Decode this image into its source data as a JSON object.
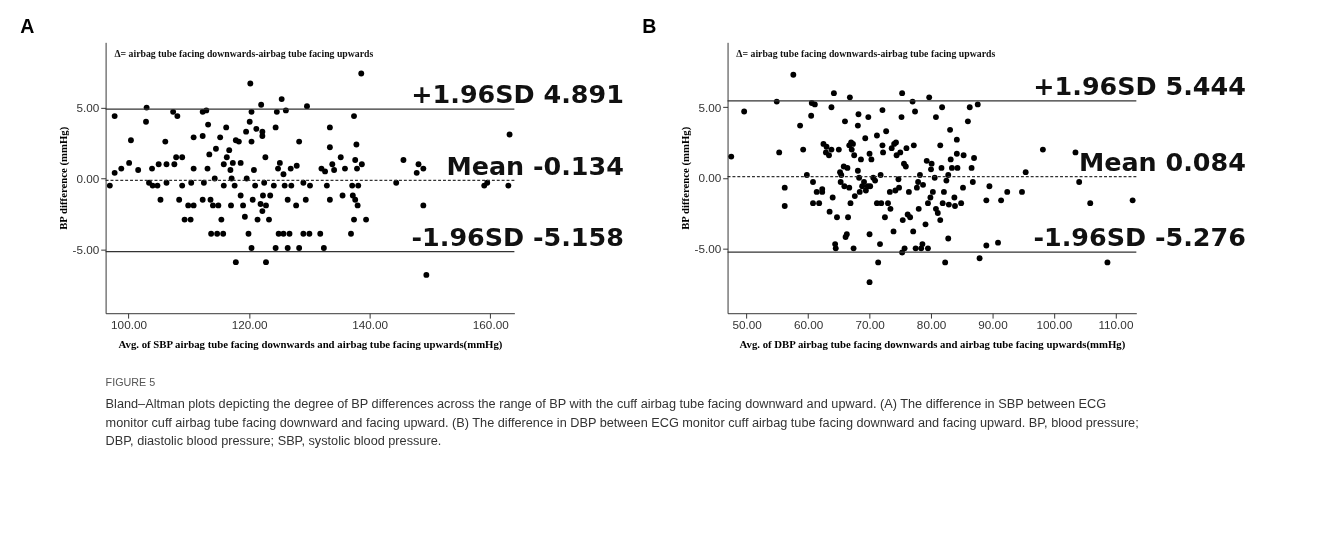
{
  "chart_data": [
    {
      "type": "scatter",
      "title": "A",
      "xlabel": "Avg. of SBP airbag tube facing downwards and airbag tube facing upwards(mmHg)",
      "ylabel": "BP difference (mmHg)",
      "annotations": [
        "Δ= airbag tube facing downwards-airbag tube facing upwards"
      ],
      "xlim": [
        96.2,
        164.0
      ],
      "ylim": [
        -9.5,
        9.6
      ],
      "xticks": [
        {
          "value": 100,
          "label": "100.00"
        },
        {
          "value": 120,
          "label": "120.00"
        },
        {
          "value": 140,
          "label": "140.00"
        },
        {
          "value": 160,
          "label": "160.00"
        }
      ],
      "yticks": [
        {
          "value": -5,
          "label": "-5.00"
        },
        {
          "value": 0,
          "label": "0.00"
        },
        {
          "value": 5,
          "label": "5.00"
        }
      ],
      "grid": false,
      "marker": "circle",
      "ref_lines": [
        {
          "axis": "y",
          "value": 4.891,
          "label": "+1.96SD 4.891",
          "color": "#333333",
          "line_style": "solid"
        },
        {
          "axis": "y",
          "value": -0.134,
          "label": "Mean -0.134",
          "color": "#333333",
          "line_style": "dashed"
        },
        {
          "axis": "y",
          "value": -5.158,
          "label": "-1.96SD -5.158",
          "color": "#333333",
          "line_style": "solid"
        }
      ],
      "series": [
        {
          "color": "#000000",
          "x": [
            96.9,
            97.7,
            97.7,
            98.8,
            100.1,
            100.4,
            101.6,
            102.9,
            103.0,
            103.4,
            103.9,
            104.0,
            104.8,
            105.0,
            105.3,
            106.1,
            106.3,
            106.3,
            107.4,
            107.6,
            107.9,
            108.1,
            108.4,
            108.9,
            108.9,
            109.3,
            109.9,
            110.3,
            110.4,
            110.8,
            110.8,
            110.8,
            112.3,
            112.3,
            112.3,
            112.5,
            112.9,
            113.1,
            113.2,
            113.4,
            113.6,
            113.7,
            114.0,
            114.3,
            114.5,
            114.7,
            114.9,
            115.2,
            115.4,
            115.7,
            115.8,
            115.8,
            116.2,
            116.3,
            116.7,
            116.9,
            117.0,
            117.1,
            117.3,
            117.6,
            117.8,
            117.8,
            118.3,
            118.6,
            118.6,
            119.0,
            119.3,
            119.5,
            119.6,
            119.9,
            120.1,
            120.2,
            120.4,
            120.4,
            120.4,
            120.6,
            120.8,
            121.0,
            121.2,
            121.4,
            121.9,
            122.0,
            122.2,
            122.2,
            122.2,
            122.3,
            122.5,
            122.7,
            122.8,
            122.8,
            123.3,
            123.5,
            124.1,
            124.4,
            124.4,
            124.6,
            124.8,
            124.9,
            125.1,
            125.4,
            125.7,
            125.7,
            125.9,
            126.1,
            126.4,
            126.4,
            126.7,
            126.9,
            127.0,
            127.8,
            127.9,
            128.3,
            128.3,
            129.0,
            129.0,
            129.4,
            129.6,
            130.0,
            130.1,
            131.8,
            132.0,
            132.4,
            132.6,
            132.9,
            133.4,
            133.4,
            133.4,
            133.8,
            134.1,
            135.2,
            135.5,
            135.9,
            136.9,
            137.1,
            137.2,
            137.4,
            137.4,
            137.6,
            137.6,
            137.8,
            137.9,
            138.0,
            138.1,
            138.6,
            138.7,
            139.4,
            144.4,
            145.6,
            147.8,
            148.1,
            148.9,
            148.9,
            149.4,
            159.0,
            159.5,
            163.0,
            163.2
          ],
          "values": [
            -0.5,
            4.4,
            0.4,
            0.7,
            1.1,
            2.7,
            0.6,
            4.0,
            5.0,
            -0.3,
            0.7,
            -0.5,
            -0.5,
            1.0,
            -1.5,
            2.6,
            -0.3,
            1.0,
            4.7,
            1.0,
            1.5,
            4.4,
            -1.5,
            1.5,
            -0.5,
            -2.9,
            -1.9,
            -2.9,
            -0.3,
            2.9,
            -1.9,
            0.7,
            3.0,
            4.7,
            -1.5,
            -0.3,
            4.8,
            0.7,
            3.8,
            1.7,
            -1.5,
            -3.9,
            -1.9,
            0.0,
            2.1,
            -3.9,
            -1.9,
            2.9,
            -2.9,
            -3.9,
            1.0,
            -0.5,
            3.6,
            1.5,
            2.0,
            0.6,
            -1.9,
            0.0,
            1.1,
            -0.5,
            -5.9,
            2.7,
            2.6,
            1.1,
            -1.2,
            -1.9,
            -2.7,
            3.3,
            0.0,
            -3.9,
            4.0,
            6.7,
            4.7,
            2.6,
            -4.9,
            -1.5,
            0.6,
            -0.5,
            3.5,
            -2.9,
            -1.8,
            5.2,
            3.0,
            3.3,
            -2.3,
            -1.2,
            -0.3,
            1.5,
            -5.9,
            -1.9,
            -2.9,
            -1.2,
            -0.5,
            -4.9,
            3.6,
            4.7,
            0.7,
            -3.9,
            1.1,
            5.6,
            0.3,
            -3.9,
            -0.5,
            4.8,
            -1.5,
            -4.9,
            -3.9,
            0.7,
            -0.5,
            -1.9,
            0.9,
            2.6,
            -4.9,
            -0.3,
            -3.9,
            -1.5,
            5.1,
            -3.9,
            -0.5,
            -3.9,
            0.7,
            -4.9,
            0.5,
            -0.5,
            -1.5,
            2.2,
            3.6,
            1.0,
            0.6,
            1.5,
            -1.2,
            0.7,
            -3.9,
            -0.5,
            -1.2,
            4.4,
            -2.9,
            1.3,
            -1.5,
            2.4,
            0.7,
            -1.9,
            -0.5,
            7.4,
            1.0,
            -2.9,
            -0.3,
            1.3,
            0.4,
            1.0,
            0.7,
            -1.9,
            -6.8,
            -0.5,
            -0.3,
            -0.5,
            3.1
          ]
        }
      ]
    },
    {
      "type": "scatter",
      "title": "B",
      "xlabel": "Avg. of DBP airbag tube facing downwards and airbag tube facing upwards(mmHg)",
      "ylabel": "BP difference (mmHg)",
      "annotations": [
        "Δ= airbag tube facing downwards-airbag tube facing upwards",
        "FIGURE 5",
        "Bland–Altman plots depicting the degree of BP differences across the range of BP with the cuff airbag tube facing downward and upward. (A) The difference in SBP between ECG monitor cuff airbag tube facing downward and facing upward. (B) The difference in DBP between ECG monitor cuff airbag tube facing downward and facing upward. BP, blood pressure; DBP, diastolic blood pressure; SBP, systolic blood pressure."
      ],
      "xlim": [
        46.9,
        113.4
      ],
      "ylim": [
        -9.6,
        9.6
      ],
      "xticks": [
        {
          "value": 50,
          "label": "50.00"
        },
        {
          "value": 60,
          "label": "60.00"
        },
        {
          "value": 70,
          "label": "70.00"
        },
        {
          "value": 80,
          "label": "80.00"
        },
        {
          "value": 90,
          "label": "90.00"
        },
        {
          "value": 100,
          "label": "100.00"
        },
        {
          "value": 110,
          "label": "110.00"
        }
      ],
      "yticks": [
        {
          "value": -5,
          "label": "-5.00"
        },
        {
          "value": 0,
          "label": "0.00"
        },
        {
          "value": 5,
          "label": "5.00"
        }
      ],
      "grid": false,
      "marker": "circle",
      "ref_lines": [
        {
          "axis": "y",
          "value": 5.444,
          "label": "+1.96SD 5.444",
          "color": "#333333",
          "line_style": "solid"
        },
        {
          "axis": "y",
          "value": 0.084,
          "label": "Mean 0.084",
          "color": "#333333",
          "line_style": "dashed"
        },
        {
          "axis": "y",
          "value": -5.276,
          "label": "-1.96SD -5.276",
          "color": "#333333",
          "line_style": "solid"
        }
      ],
      "series": [
        {
          "color": "#000000",
          "x": [
            47.5,
            49.6,
            54.9,
            55.3,
            56.2,
            56.2,
            57.6,
            58.7,
            59.2,
            59.8,
            60.5,
            60.6,
            60.8,
            60.8,
            61.1,
            61.4,
            61.8,
            62.3,
            62.3,
            62.5,
            62.9,
            63.0,
            63.4,
            63.5,
            63.8,
            63.8,
            64.0,
            64.2,
            64.4,
            64.5,
            64.7,
            65.0,
            65.2,
            65.3,
            65.4,
            65.8,
            65.9,
            66.0,
            66.1,
            66.3,
            66.4,
            66.5,
            66.7,
            66.7,
            66.8,
            66.9,
            67.0,
            67.1,
            67.3,
            67.4,
            67.5,
            67.6,
            68.1,
            68.1,
            68.2,
            68.3,
            68.4,
            68.6,
            68.8,
            69.1,
            69.3,
            69.4,
            69.7,
            70.0,
            70.0,
            69.8,
            70.0,
            70.1,
            70.3,
            70.6,
            70.9,
            71.2,
            71.2,
            71.4,
            71.7,
            71.8,
            71.9,
            72.1,
            72.1,
            72.2,
            72.5,
            72.7,
            73.0,
            73.3,
            73.4,
            73.6,
            73.9,
            74.0,
            74.2,
            74.3,
            74.4,
            74.7,
            74.8,
            75.0,
            75.2,
            75.3,
            75.3,
            75.4,
            75.6,
            75.7,
            75.9,
            76.0,
            76.2,
            76.4,
            76.6,
            77.0,
            77.1,
            77.2,
            77.4,
            77.5,
            77.7,
            77.9,
            78.0,
            78.2,
            78.4,
            78.6,
            78.7,
            79.1,
            79.3,
            79.5,
            79.5,
            79.7,
            79.9,
            80.0,
            80.1,
            80.3,
            80.6,
            80.8,
            80.8,
            81.1,
            81.5,
            81.5,
            81.7,
            81.8,
            81.9,
            82.1,
            82.3,
            82.5,
            82.8,
            82.8,
            82.9,
            83.1,
            83.2,
            83.4,
            83.8,
            83.9,
            84.2,
            84.2,
            84.3,
            84.9,
            85.2,
            85.3,
            86.0,
            86.3,
            86.6,
            86.8,
            87.0,
            87.6,
            87.9,
            89.0,
            89.0,
            89.5,
            90.9,
            91.4,
            92.4,
            94.8,
            95.4,
            98.2,
            103.5,
            104.1,
            105.9,
            108.7,
            112.8
          ],
          "values": [
            1.5,
            4.7,
            5.4,
            1.8,
            -0.7,
            -2.0,
            7.3,
            3.7,
            2.0,
            0.2,
            4.4,
            5.3,
            -0.3,
            -1.8,
            5.2,
            -1.0,
            -1.8,
            -0.8,
            -1.0,
            2.4,
            1.8,
            2.2,
            1.6,
            -2.4,
            5.0,
            2.0,
            -1.4,
            6.0,
            -4.7,
            -5.0,
            -2.8,
            2.0,
            0.4,
            -0.3,
            0.2,
            0.8,
            -0.6,
            4.0,
            -4.2,
            -4.0,
            0.7,
            -2.8,
            -0.7,
            2.3,
            5.7,
            -1.8,
            2.5,
            2.0,
            2.4,
            -5.0,
            1.6,
            -1.3,
            3.7,
            0.5,
            4.5,
            0.0,
            -1.0,
            1.3,
            -0.6,
            -0.3,
            2.8,
            -0.9,
            -0.6,
            -4.0,
            -7.4,
            4.3,
            1.7,
            -0.6,
            1.3,
            0.0,
            -0.2,
            3.0,
            -1.8,
            -6.0,
            -4.7,
            0.2,
            -1.8,
            4.8,
            2.3,
            1.8,
            -2.8,
            3.3,
            -1.8,
            -1.0,
            -2.2,
            2.1,
            -3.8,
            2.4,
            -0.9,
            2.5,
            1.6,
            -0.1,
            -0.7,
            1.8,
            4.3,
            6.0,
            -5.3,
            -3.0,
            1.0,
            -5.0,
            0.8,
            2.1,
            -2.6,
            -1.0,
            -2.8,
            5.4,
            -3.8,
            2.3,
            4.7,
            -5.0,
            -0.7,
            -0.3,
            -2.2,
            0.2,
            -5.0,
            -4.7,
            -0.5,
            -3.3,
            1.2,
            -5.0,
            -1.8,
            5.7,
            -1.4,
            0.6,
            1.0,
            -1.0,
            0.0,
            -2.2,
            4.3,
            -2.5,
            2.3,
            -3.0,
            0.7,
            5.0,
            -1.8,
            -1.0,
            -6.0,
            -0.2,
            -4.3,
            0.2,
            -1.9,
            3.4,
            1.3,
            0.7,
            -1.4,
            -2.0,
            1.7,
            2.7,
            0.7,
            -1.8,
            -0.7,
            1.6,
            4.0,
            5.0,
            0.7,
            -0.3,
            1.4,
            5.2,
            -5.7,
            -1.6,
            -4.8,
            -0.6,
            -4.6,
            -1.6,
            -1.0,
            -1.0,
            0.4,
            2.0,
            1.8,
            -0.3,
            -1.8,
            -6.0,
            -1.6
          ]
        }
      ]
    }
  ]
}
